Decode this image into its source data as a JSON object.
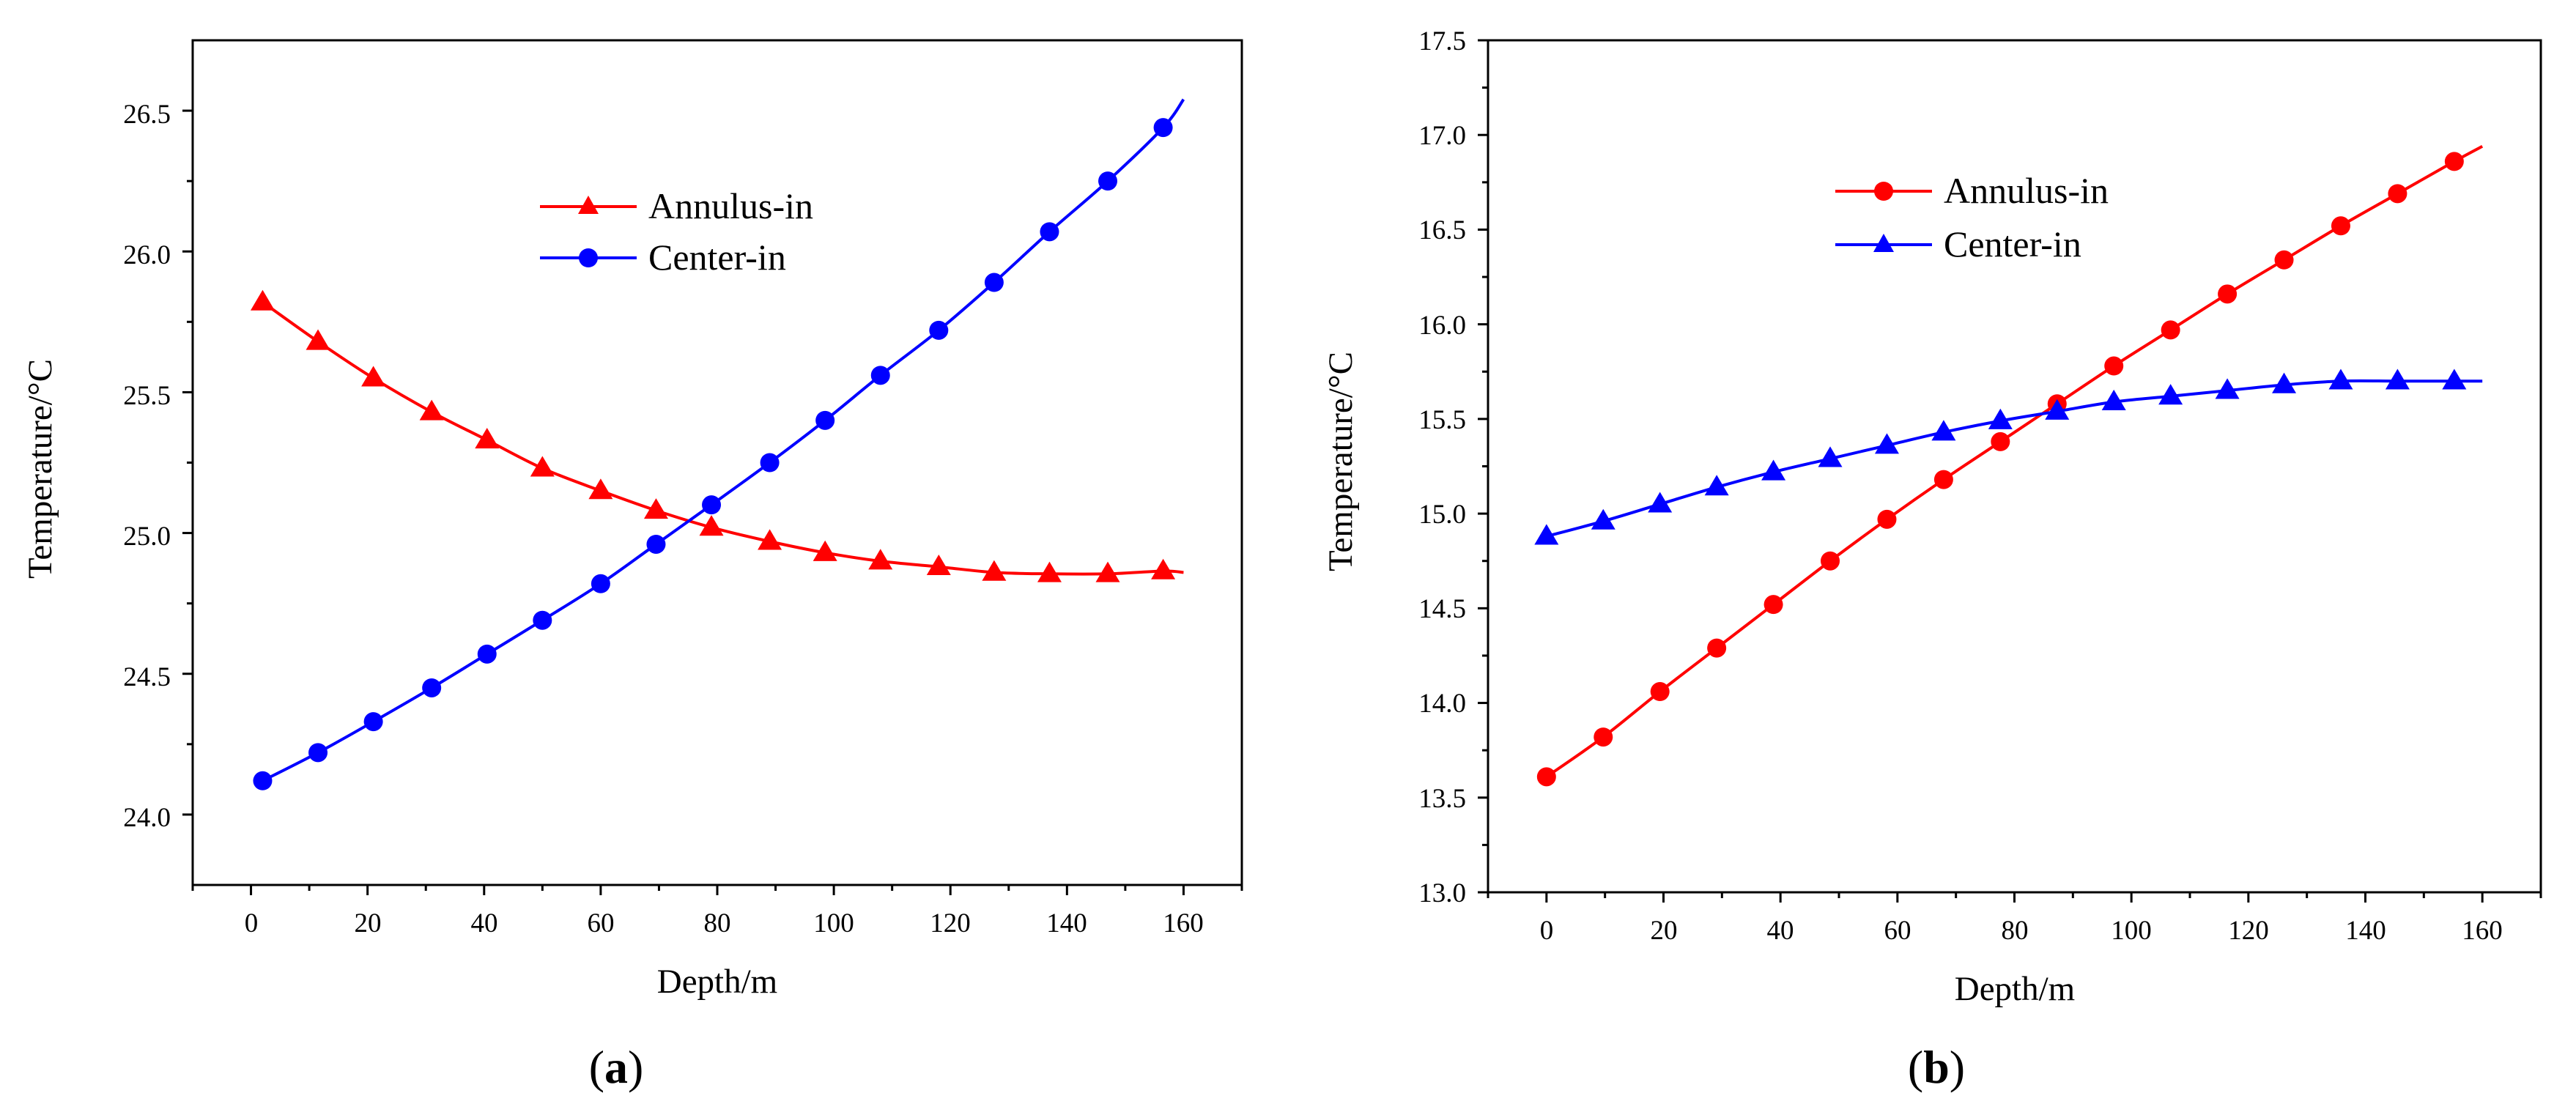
{
  "colors": {
    "red": "#ff0000",
    "blue": "#0000ff",
    "axis": "#000000"
  },
  "chart_data": [
    {
      "type": "line",
      "panel_label": "a",
      "xlabel": "Depth/m",
      "ylabel": "Temperature/°C",
      "xlim": [
        -10,
        170
      ],
      "ylim": [
        23.75,
        26.75
      ],
      "x_ticks": [
        0,
        20,
        40,
        60,
        80,
        100,
        120,
        140,
        160
      ],
      "x_tick_labels": [
        "0",
        "20",
        "40",
        "60",
        "80",
        "100",
        "120",
        "140",
        "160"
      ],
      "y_ticks": [
        24.0,
        24.5,
        25.0,
        25.5,
        26.0,
        26.5
      ],
      "y_tick_labels": [
        "24.0",
        "24.5",
        "25.0",
        "25.5",
        "26.0",
        "26.5"
      ],
      "x_minor_ticks": [
        -10,
        10,
        30,
        50,
        70,
        90,
        110,
        130,
        150,
        170
      ],
      "y_minor_ticks": [
        24.25,
        24.75,
        25.25,
        25.75,
        26.25
      ],
      "legend_position": "upper-center",
      "series": [
        {
          "name": "Annulus-in",
          "color": "#ff0000",
          "marker": "triangle",
          "x": [
            2,
            11.5,
            21,
            31,
            40.5,
            50,
            60,
            69.5,
            79,
            89,
            98.5,
            108,
            118,
            127.5,
            137,
            147,
            156.5
          ],
          "values": [
            25.82,
            25.68,
            25.55,
            25.43,
            25.33,
            25.23,
            25.15,
            25.08,
            25.02,
            24.97,
            24.93,
            24.9,
            24.88,
            24.86,
            24.855,
            24.855,
            24.865
          ],
          "curve_end": {
            "x": 160,
            "y": 24.86
          }
        },
        {
          "name": "Center-in",
          "color": "#0000ff",
          "marker": "circle",
          "x": [
            2,
            11.5,
            21,
            31,
            40.5,
            50,
            60,
            69.5,
            79,
            89,
            98.5,
            108,
            118,
            127.5,
            137,
            147,
            156.5
          ],
          "values": [
            24.12,
            24.22,
            24.33,
            24.45,
            24.57,
            24.69,
            24.82,
            24.96,
            25.1,
            25.25,
            25.4,
            25.56,
            25.72,
            25.89,
            26.07,
            26.25,
            26.44
          ],
          "curve_end": {
            "x": 160,
            "y": 26.54
          }
        }
      ]
    },
    {
      "type": "line",
      "panel_label": "b",
      "xlabel": "Depth/m",
      "ylabel": "Temperature/°C",
      "xlim": [
        -10,
        170
      ],
      "ylim": [
        13.0,
        17.5
      ],
      "x_ticks": [
        0,
        20,
        40,
        60,
        80,
        100,
        120,
        140,
        160
      ],
      "x_tick_labels": [
        "0",
        "20",
        "40",
        "60",
        "80",
        "100",
        "120",
        "140",
        "160"
      ],
      "y_ticks": [
        13.0,
        13.5,
        14.0,
        14.5,
        15.0,
        15.5,
        16.0,
        16.5,
        17.0,
        17.5
      ],
      "y_tick_labels": [
        "13.0",
        "13.5",
        "14.0",
        "14.5",
        "15.0",
        "15.5",
        "16.0",
        "16.5",
        "17.0",
        "17.5"
      ],
      "x_minor_ticks": [
        -10,
        10,
        30,
        50,
        70,
        90,
        110,
        130,
        150,
        170
      ],
      "y_minor_ticks": [
        13.25,
        13.75,
        14.25,
        14.75,
        15.25,
        15.75,
        16.25,
        16.75,
        17.25
      ],
      "legend_position": "upper-center",
      "series": [
        {
          "name": "Annulus-in",
          "color": "#ff0000",
          "marker": "circle",
          "x": [
            0,
            9.7,
            19.4,
            29.1,
            38.8,
            48.5,
            58.2,
            67.9,
            77.6,
            87.3,
            97,
            106.7,
            116.4,
            126.1,
            135.8,
            145.5,
            155.2
          ],
          "values": [
            13.61,
            13.82,
            14.06,
            14.29,
            14.52,
            14.75,
            14.97,
            15.18,
            15.38,
            15.58,
            15.78,
            15.97,
            16.16,
            16.34,
            16.52,
            16.69,
            16.86
          ],
          "curve_end": {
            "x": 160,
            "y": 16.94
          }
        },
        {
          "name": "Center-in",
          "color": "#0000ff",
          "marker": "triangle",
          "x": [
            0,
            9.7,
            19.4,
            29.1,
            38.8,
            48.5,
            58.2,
            67.9,
            77.6,
            87.3,
            97,
            106.7,
            116.4,
            126.1,
            135.8,
            145.5,
            155.2
          ],
          "values": [
            14.88,
            14.96,
            15.05,
            15.14,
            15.22,
            15.29,
            15.36,
            15.43,
            15.49,
            15.54,
            15.59,
            15.62,
            15.65,
            15.68,
            15.7,
            15.7,
            15.7
          ],
          "curve_end": {
            "x": 160,
            "y": 15.7
          }
        }
      ]
    }
  ]
}
